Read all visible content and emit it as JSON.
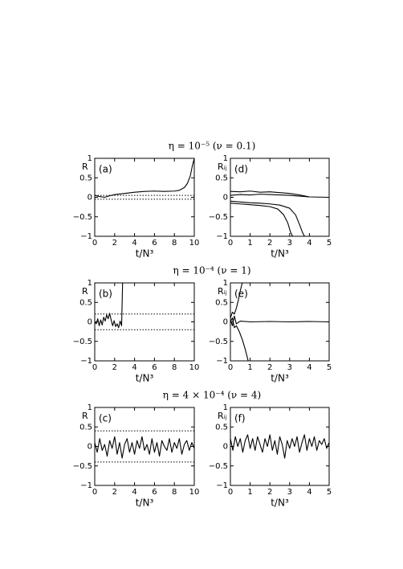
{
  "chart_data": [
    {
      "type": "line",
      "title": "η = 10⁻⁵   (ν = 0.1)",
      "panel_label": "(a)",
      "ylabel": "R",
      "xlabel": "t/N³",
      "xlim": [
        0,
        10
      ],
      "xticks": [
        0,
        2,
        4,
        6,
        8,
        10
      ],
      "ylim": [
        -1,
        1
      ],
      "yticks": [
        {
          "value": -1,
          "label": "−1"
        },
        {
          "value": -0.5,
          "label": "−0.5"
        },
        0,
        0.5,
        1
      ],
      "ref_lines": [
        0.05,
        -0.05
      ],
      "series": [
        {
          "color": "#000000",
          "x": [
            0,
            0.5,
            1,
            1.5,
            2,
            3,
            4,
            5,
            6,
            7,
            8,
            8.5,
            9,
            9.3,
            9.6,
            9.8,
            10
          ],
          "values": [
            0.05,
            0.02,
            0.0,
            0.04,
            0.07,
            0.1,
            0.13,
            0.15,
            0.16,
            0.15,
            0.16,
            0.18,
            0.25,
            0.35,
            0.55,
            0.8,
            1
          ]
        }
      ]
    },
    {
      "type": "line",
      "panel_label": "(d)",
      "ylabel": "Rᵢⱼ",
      "xlabel": "t/N³",
      "xlim": [
        0,
        5
      ],
      "xticks": [
        0,
        1,
        2,
        3,
        4,
        5
      ],
      "ylim": [
        -1,
        1
      ],
      "yticks": [
        {
          "value": -1,
          "label": "−1"
        },
        {
          "value": -0.5,
          "label": "−0.5"
        },
        0,
        0.5,
        1
      ],
      "ref_lines": [],
      "series": [
        {
          "color": "#000000",
          "x": [
            0,
            0.5,
            1,
            1.5,
            2,
            2.5,
            3,
            3.5,
            4,
            5
          ],
          "values": [
            0.15,
            0.14,
            0.16,
            0.13,
            0.14,
            0.12,
            0.1,
            0.06,
            0.01,
            0.0
          ]
        },
        {
          "color": "#000000",
          "x": [
            0,
            0.5,
            1,
            1.5,
            2,
            2.5,
            3,
            3.5,
            4
          ],
          "values": [
            0.05,
            0.07,
            0.06,
            0.08,
            0.07,
            0.06,
            0.05,
            0.03,
            0.01
          ]
        },
        {
          "color": "#000000",
          "x": [
            0,
            0.5,
            1,
            1.5,
            2,
            2.4,
            2.7,
            2.9,
            3.05,
            3.15,
            5
          ],
          "values": [
            -0.15,
            -0.17,
            -0.19,
            -0.21,
            -0.24,
            -0.3,
            -0.45,
            -0.65,
            -0.9,
            -1,
            -1
          ]
        },
        {
          "color": "#000000",
          "x": [
            0,
            0.5,
            1,
            1.5,
            2,
            2.5,
            3,
            3.3,
            3.5,
            3.65,
            3.75,
            5
          ],
          "values": [
            -0.1,
            -0.12,
            -0.14,
            -0.15,
            -0.17,
            -0.2,
            -0.28,
            -0.45,
            -0.7,
            -0.9,
            -1,
            -1
          ]
        }
      ]
    },
    {
      "type": "line",
      "title": "η = 10⁻⁴   (ν = 1)",
      "panel_label": "(b)",
      "ylabel": "R",
      "xlabel": "t/N³",
      "xlim": [
        0,
        10
      ],
      "xticks": [
        0,
        2,
        4,
        6,
        8,
        10
      ],
      "ylim": [
        -1,
        1
      ],
      "yticks": [
        {
          "value": -1,
          "label": "−1"
        },
        {
          "value": -0.5,
          "label": "−0.5"
        },
        0,
        0.5,
        1
      ],
      "ref_lines": [
        0.2,
        -0.2
      ],
      "series": [
        {
          "color": "#000000",
          "x": [
            0,
            0.15,
            0.3,
            0.45,
            0.6,
            0.75,
            0.9,
            1.05,
            1.2,
            1.35,
            1.5,
            1.65,
            1.8,
            1.95,
            2.1,
            2.25,
            2.4,
            2.55,
            2.7,
            2.8,
            10
          ],
          "values": [
            0,
            -0.05,
            0.08,
            -0.1,
            0.05,
            -0.08,
            0.12,
            0.02,
            0.18,
            0.08,
            0.22,
            0.05,
            -0.1,
            0.03,
            -0.12,
            -0.05,
            -0.15,
            0.02,
            -0.1,
            1,
            1
          ]
        }
      ]
    },
    {
      "type": "line",
      "panel_label": "(e)",
      "ylabel": "Rᵢⱼ",
      "xlabel": "t/N³",
      "xlim": [
        0,
        5
      ],
      "xticks": [
        0,
        1,
        2,
        3,
        4,
        5
      ],
      "ylim": [
        -1,
        1
      ],
      "yticks": [
        {
          "value": -1,
          "label": "−1"
        },
        {
          "value": -0.5,
          "label": "−0.5"
        },
        0,
        0.5,
        1
      ],
      "ref_lines": [],
      "series": [
        {
          "color": "#000000",
          "x": [
            0,
            0.1,
            0.2,
            0.3,
            0.4,
            0.5,
            0.6,
            5
          ],
          "values": [
            0.1,
            0.25,
            0.2,
            0.35,
            0.55,
            0.8,
            1,
            1
          ]
        },
        {
          "color": "#000000",
          "x": [
            0,
            0.1,
            0.2,
            0.3,
            0.5,
            1,
            2,
            3,
            4,
            5
          ],
          "values": [
            0.05,
            -0.1,
            0.15,
            -0.05,
            0.02,
            0.0,
            0.01,
            0.0,
            0.01,
            0.0
          ]
        },
        {
          "color": "#000000",
          "x": [
            0,
            0.1,
            0.2,
            0.3,
            0.45,
            0.6,
            0.75,
            0.85,
            0.9,
            5
          ],
          "values": [
            0.0,
            0.1,
            -0.15,
            -0.1,
            -0.25,
            -0.45,
            -0.7,
            -0.9,
            -1,
            -1
          ]
        }
      ]
    },
    {
      "type": "line",
      "title": "η = 4 × 10⁻⁴   (ν = 4)",
      "panel_label": "(c)",
      "ylabel": "R",
      "xlabel": "t/N³",
      "xlim": [
        0,
        10
      ],
      "xticks": [
        0,
        2,
        4,
        6,
        8,
        10
      ],
      "ylim": [
        -1,
        1
      ],
      "yticks": [
        {
          "value": -1,
          "label": "−1"
        },
        {
          "value": -0.5,
          "label": "−0.5"
        },
        0,
        0.5,
        1
      ],
      "ref_lines": [
        0.4,
        -0.4
      ],
      "series": [
        {
          "color": "#000000",
          "x": [
            0,
            0.25,
            0.5,
            0.75,
            1,
            1.25,
            1.5,
            1.75,
            2,
            2.25,
            2.5,
            2.75,
            3,
            3.25,
            3.5,
            3.75,
            4,
            4.25,
            4.5,
            4.75,
            5,
            5.25,
            5.5,
            5.75,
            6,
            6.25,
            6.5,
            6.75,
            7,
            7.25,
            7.5,
            7.75,
            8,
            8.25,
            8.5,
            8.75,
            9,
            9.25,
            9.5,
            9.75,
            10
          ],
          "values": [
            0.1,
            -0.15,
            0.2,
            -0.1,
            0.05,
            -0.25,
            0.15,
            -0.05,
            0.25,
            -0.2,
            0.1,
            -0.3,
            0.05,
            0.2,
            -0.15,
            0.1,
            -0.2,
            0.15,
            -0.05,
            0.25,
            -0.1,
            0.05,
            -0.2,
            0.2,
            -0.15,
            0.1,
            -0.25,
            0.15,
            0.0,
            -0.1,
            0.2,
            -0.15,
            0.1,
            -0.05,
            0.2,
            -0.2,
            0.05,
            0.15,
            -0.1,
            0.1,
            -0.05
          ]
        }
      ]
    },
    {
      "type": "line",
      "panel_label": "(f)",
      "ylabel": "Rᵢⱼ",
      "xlabel": "t/N³",
      "xlim": [
        0,
        5
      ],
      "xticks": [
        0,
        1,
        2,
        3,
        4,
        5
      ],
      "ylim": [
        -1,
        1
      ],
      "yticks": [
        {
          "value": -1,
          "label": "−1"
        },
        {
          "value": -0.5,
          "label": "−0.5"
        },
        0,
        0.5,
        1
      ],
      "ref_lines": [],
      "series": [
        {
          "color": "#000000",
          "x": [
            0,
            0.125,
            0.25,
            0.375,
            0.5,
            0.625,
            0.75,
            0.875,
            1,
            1.125,
            1.25,
            1.375,
            1.5,
            1.625,
            1.75,
            1.875,
            2,
            2.125,
            2.25,
            2.375,
            2.5,
            2.625,
            2.75,
            2.875,
            3,
            3.125,
            3.25,
            3.375,
            3.5,
            3.625,
            3.75,
            3.875,
            4,
            4.125,
            4.25,
            4.375,
            4.5,
            4.625,
            4.75,
            4.875,
            5
          ],
          "values": [
            0.2,
            -0.1,
            0.25,
            0.0,
            0.2,
            -0.15,
            0.15,
            0.3,
            -0.05,
            0.2,
            -0.1,
            0.25,
            0.05,
            -0.15,
            0.2,
            0.0,
            0.3,
            -0.1,
            0.15,
            -0.2,
            0.25,
            0.05,
            -0.3,
            0.15,
            -0.05,
            0.2,
            0.0,
            0.25,
            -0.15,
            0.1,
            0.3,
            -0.1,
            0.2,
            0.0,
            0.25,
            -0.1,
            0.15,
            0.05,
            0.2,
            -0.05,
            0.1
          ]
        }
      ]
    }
  ]
}
